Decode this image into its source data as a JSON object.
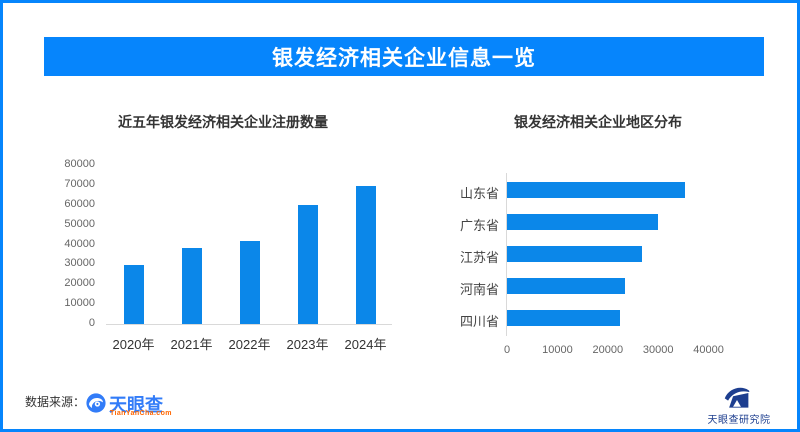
{
  "banner": {
    "title": "银发经济相关企业信息一览"
  },
  "colors": {
    "accent_blue": "#0685fc",
    "bar_blue": "#0b87e9",
    "axis_line": "#d9d9d9",
    "tyc_blue": "#327cf8",
    "tyc_orange": "#ff6600",
    "research_navy": "#1d3e8f"
  },
  "chart_data": [
    {
      "type": "bar",
      "orientation": "vertical",
      "title": "近五年银发经济相关企业注册数量",
      "categories": [
        "2020年",
        "2021年",
        "2022年",
        "2023年",
        "2024年"
      ],
      "values": [
        29500,
        38000,
        42000,
        59800,
        69500
      ],
      "ylim": [
        0,
        80000
      ],
      "yticks": [
        0,
        10000,
        20000,
        30000,
        40000,
        50000,
        60000,
        70000,
        80000
      ],
      "grid": false,
      "legend": "none",
      "bar_color": "#0b87e9"
    },
    {
      "type": "bar",
      "orientation": "horizontal",
      "title": "银发经济相关企业地区分布",
      "categories": [
        "山东省",
        "广东省",
        "江苏省",
        "河南省",
        "四川省"
      ],
      "values": [
        35300,
        30000,
        26800,
        23400,
        22400
      ],
      "xlim": [
        0,
        45000
      ],
      "xticks": [
        0,
        10000,
        20000,
        30000,
        40000
      ],
      "grid": false,
      "legend": "none",
      "bar_color": "#0b87e9"
    }
  ],
  "footer": {
    "source_label": "数据来源：",
    "tyc_logo_text": "天眼查",
    "tyc_logo_sub": "TianYanCha.com",
    "research_logo_text": "天眼查研究院"
  }
}
